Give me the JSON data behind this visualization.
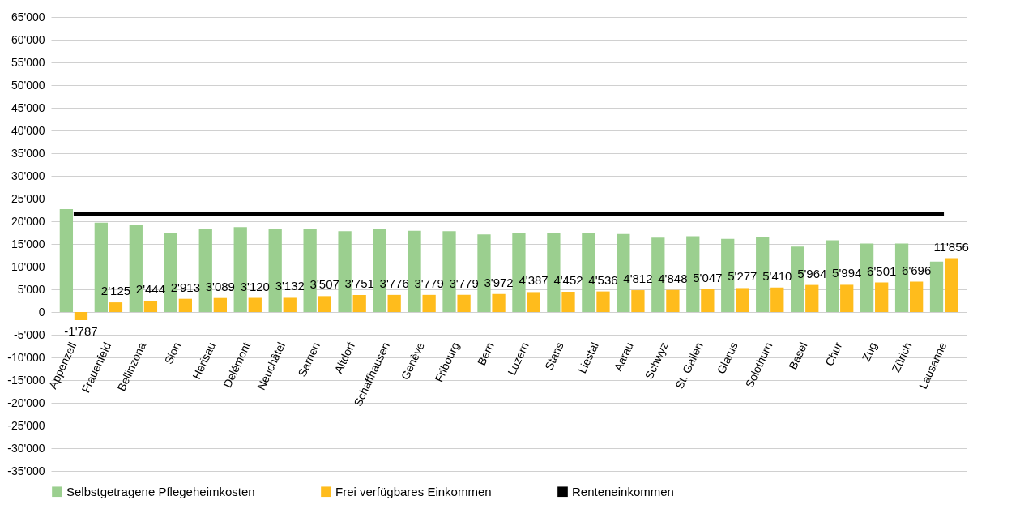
{
  "chart_data": {
    "type": "bar",
    "categories": [
      "Appenzell",
      "Frauenfeld",
      "Bellinzona",
      "Sion",
      "Herisau",
      "Delémont",
      "Neuchâtel",
      "Sarnen",
      "Altdorf",
      "Schaffhausen",
      "Genève",
      "Fribourg",
      "Bern",
      "Luzern",
      "Stans",
      "Liestal",
      "Aarau",
      "Schwyz",
      "St. Gallen",
      "Glarus",
      "Solothurn",
      "Basel",
      "Chur",
      "Zug",
      "Zürich",
      "Lausanne"
    ],
    "series": [
      {
        "name": "Selbstgetragene Pflegeheimkosten",
        "color": "#9bcf8f",
        "values": [
          22700,
          19700,
          19300,
          17400,
          18400,
          18700,
          18400,
          18200,
          17800,
          18200,
          17900,
          17800,
          17100,
          17400,
          17300,
          17300,
          17200,
          16400,
          16700,
          16100,
          16500,
          14400,
          15800,
          15100,
          15100,
          11100
        ]
      },
      {
        "name": "Frei verfügbares Einkommen",
        "color": "#ffbc1c",
        "values": [
          -1787,
          2125,
          2444,
          2913,
          3089,
          3120,
          3132,
          3507,
          3751,
          3776,
          3779,
          3779,
          3972,
          4387,
          4452,
          4536,
          4812,
          4848,
          5047,
          5277,
          5410,
          5964,
          5994,
          6501,
          6696,
          11856
        ],
        "value_labels": [
          "-1'787",
          "2'125",
          "2'444",
          "2'913",
          "3'089",
          "3'120",
          "3'132",
          "3'507",
          "3'751",
          "3'776",
          "3'779",
          "3'779",
          "3'972",
          "4'387",
          "4'452",
          "4'536",
          "4'812",
          "4'848",
          "5'047",
          "5'277",
          "5'410",
          "5'964",
          "5'994",
          "6'501",
          "6'696",
          "11'856"
        ]
      },
      {
        "name": "Renteneinkommen",
        "type": "line",
        "color": "#000000",
        "marker": "none",
        "values": [
          21600,
          21600,
          21600,
          21600,
          21600,
          21600,
          21600,
          21600,
          21600,
          21600,
          21600,
          21600,
          21600,
          21600,
          21600,
          21600,
          21600,
          21600,
          21600,
          21600,
          21600,
          21600,
          21600,
          21600,
          21600,
          21600
        ]
      }
    ],
    "ylim": [
      -35000,
      65000
    ],
    "yticks": [
      {
        "value": -35000,
        "label": "-35'000"
      },
      {
        "value": -30000,
        "label": "-30'000"
      },
      {
        "value": -25000,
        "label": "-25'000"
      },
      {
        "value": -20000,
        "label": "-20'000"
      },
      {
        "value": -15000,
        "label": "-15'000"
      },
      {
        "value": -10000,
        "label": "-10'000"
      },
      {
        "value": -5000,
        "label": "-5'000"
      },
      0,
      {
        "value": 5000,
        "label": "5'000"
      },
      {
        "value": 10000,
        "label": "10'000"
      },
      {
        "value": 15000,
        "label": "15'000"
      },
      {
        "value": 20000,
        "label": "20'000"
      },
      {
        "value": 25000,
        "label": "25'000"
      },
      {
        "value": 30000,
        "label": "30'000"
      },
      {
        "value": 35000,
        "label": "35'000"
      },
      {
        "value": 40000,
        "label": "40'000"
      },
      {
        "value": 45000,
        "label": "45'000"
      },
      {
        "value": 50000,
        "label": "50'000"
      },
      {
        "value": 55000,
        "label": "55'000"
      },
      {
        "value": 60000,
        "label": "60'000"
      },
      {
        "value": 65000,
        "label": "65'000"
      }
    ],
    "grid": "y",
    "legend": "bottom"
  }
}
